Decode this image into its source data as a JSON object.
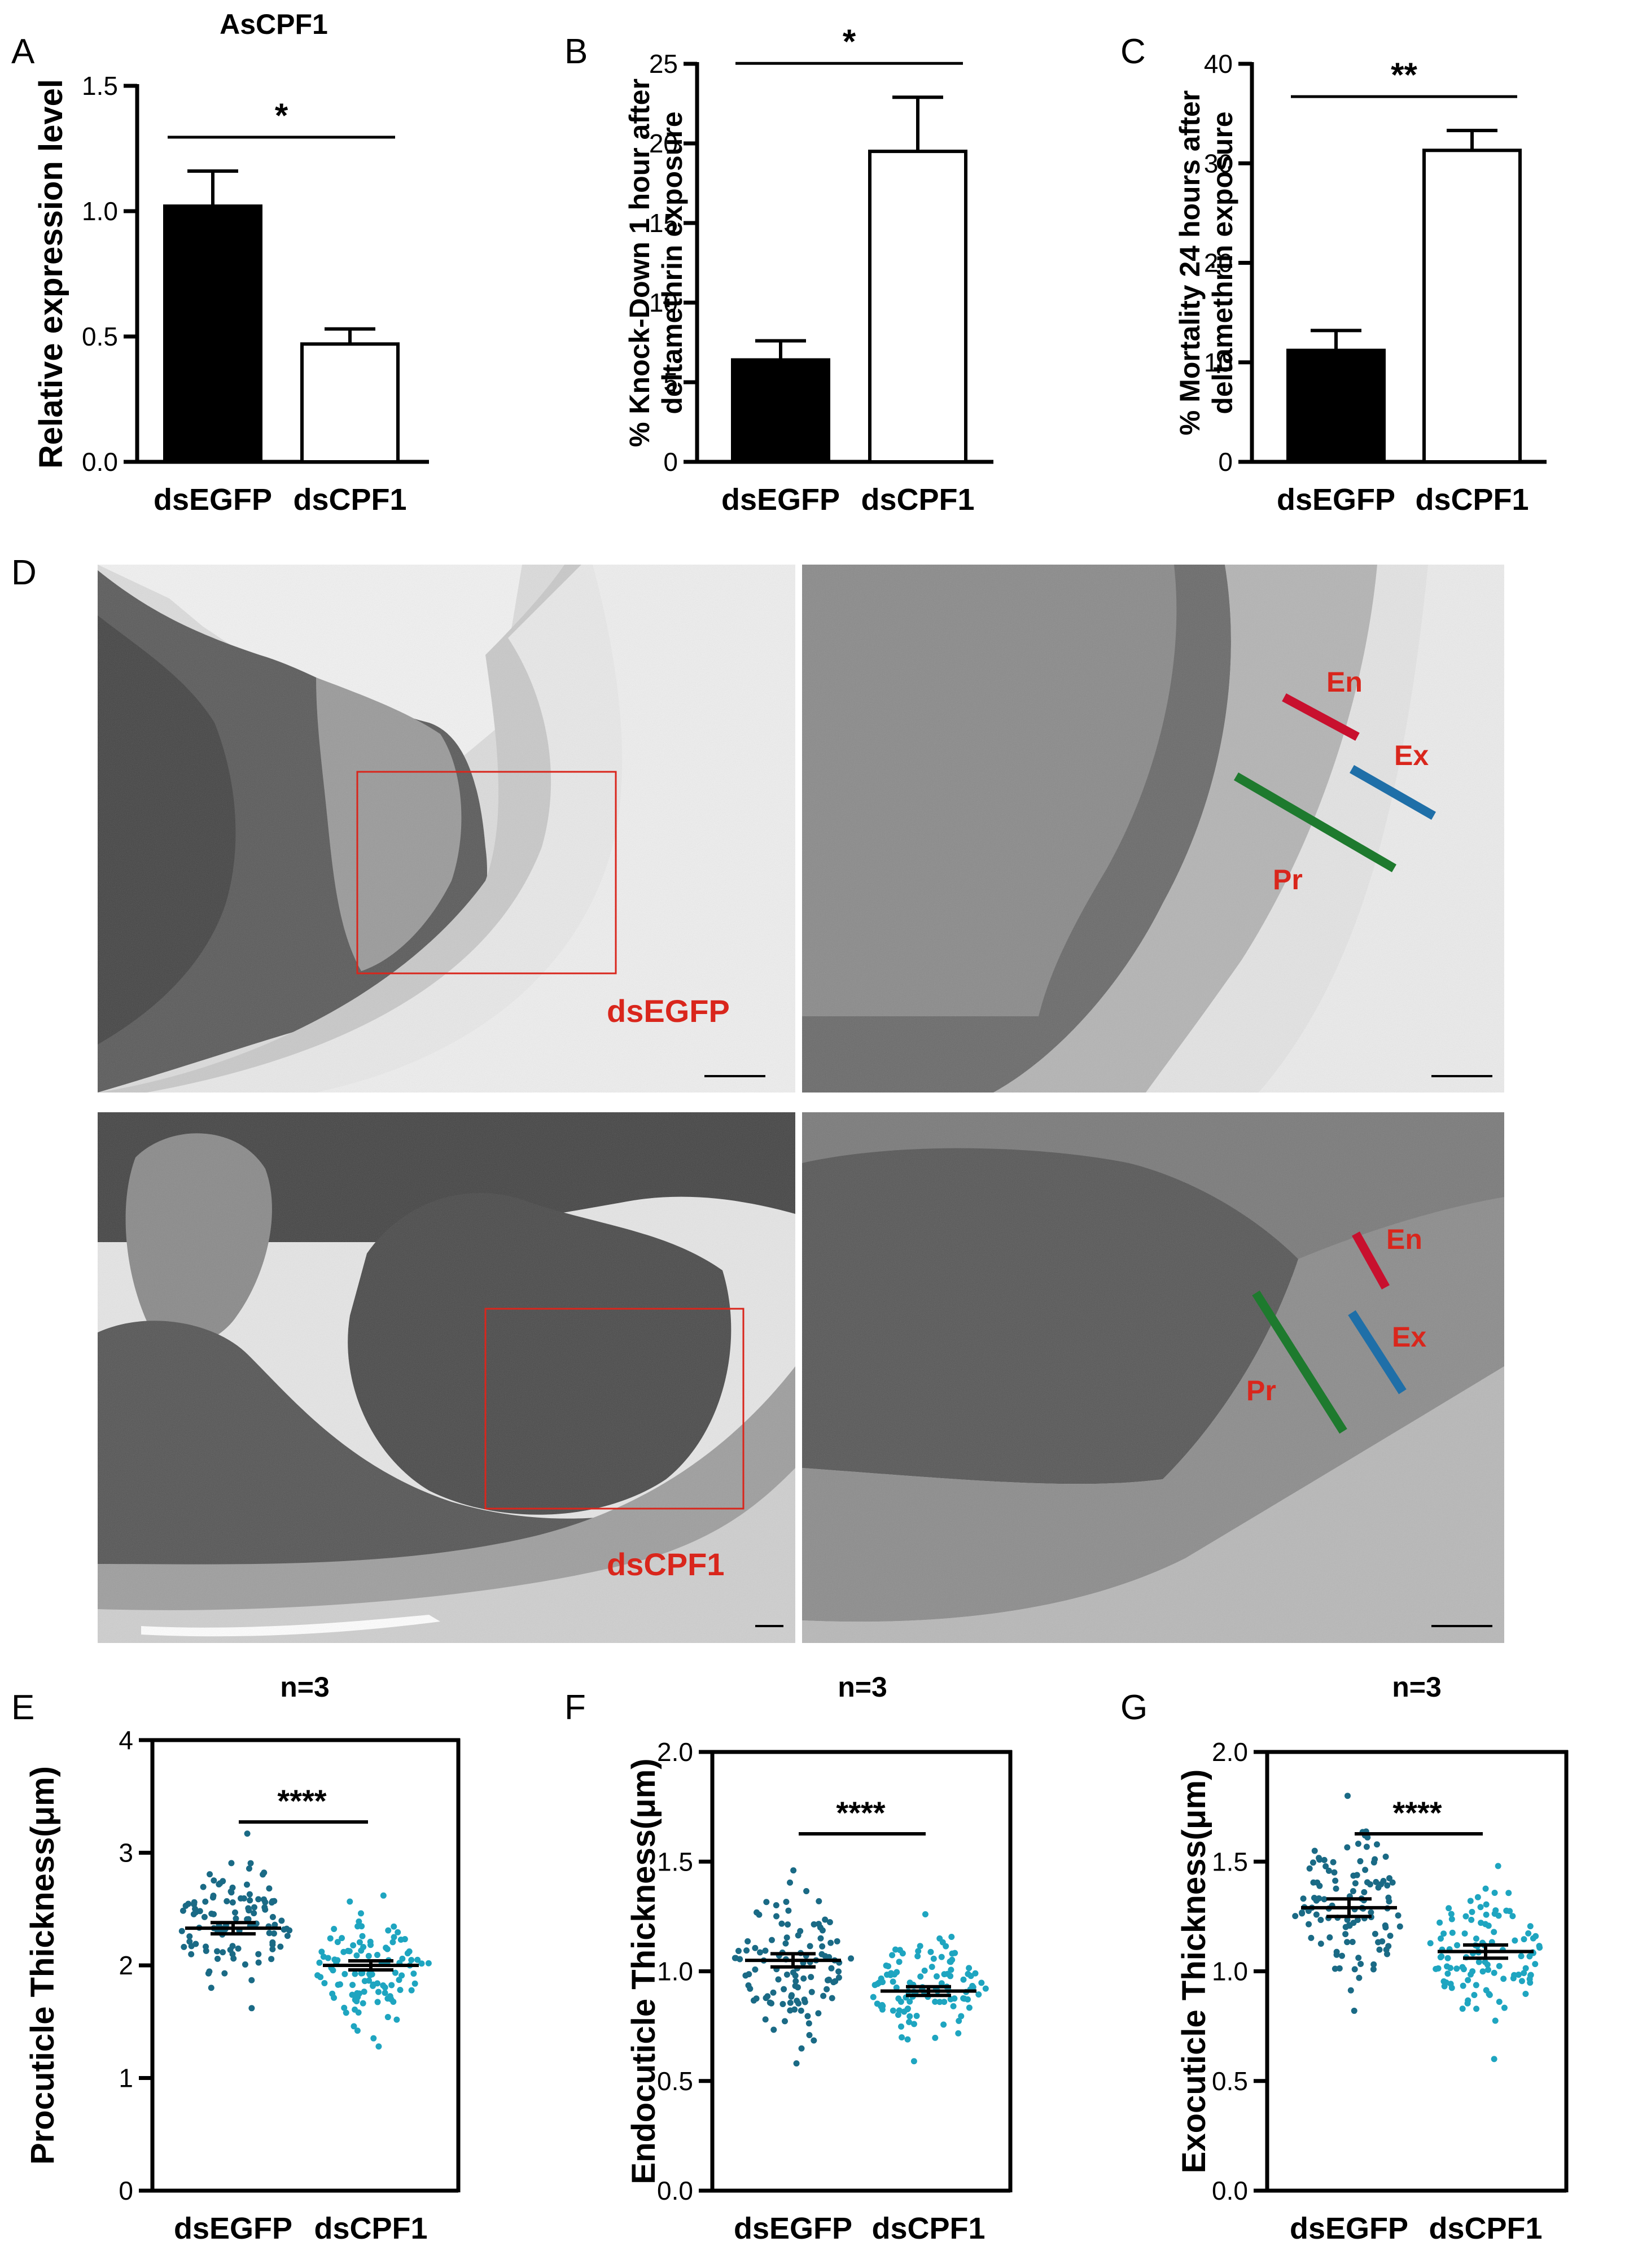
{
  "chart_data": [
    {
      "panel": "A",
      "type": "bar",
      "title": "AsCPF1",
      "ylabel": "Relative expression level",
      "categories": [
        "dsEGFP",
        "dsCPF1"
      ],
      "values": [
        1.02,
        0.47
      ],
      "errors": [
        0.14,
        0.06
      ],
      "ylim": [
        0,
        1.5
      ],
      "yticks": [
        "0.0",
        "0.5",
        "1.0",
        "1.5"
      ],
      "significance": "*",
      "bar_colors": [
        "#000000",
        "#ffffff"
      ]
    },
    {
      "panel": "B",
      "type": "bar",
      "title": "",
      "ylabel": "% Knock-Down 1 hour after deltamethrin exposure",
      "categories": [
        "dsEGFP",
        "dsCPF1"
      ],
      "values": [
        6.4,
        19.5
      ],
      "errors": [
        1.2,
        3.4
      ],
      "ylim": [
        0,
        25
      ],
      "yticks": [
        "0",
        "5",
        "10",
        "15",
        "20",
        "25"
      ],
      "significance": "*",
      "bar_colors": [
        "#000000",
        "#ffffff"
      ]
    },
    {
      "panel": "C",
      "type": "bar",
      "title": "",
      "ylabel": "% Mortality 24 hours after deltamethrin exposure",
      "categories": [
        "dsEGFP",
        "dsCPF1"
      ],
      "values": [
        11.2,
        31.3
      ],
      "errors": [
        2.0,
        2.0
      ],
      "ylim": [
        0,
        40
      ],
      "yticks": [
        "0",
        "10",
        "20",
        "30",
        "40"
      ],
      "significance": "**",
      "bar_colors": [
        "#000000",
        "#ffffff"
      ]
    },
    {
      "panel": "E",
      "type": "scatter",
      "title": "n=3",
      "ylabel": "Procuticle Thickness(μm)",
      "categories": [
        "dsEGFP",
        "dsCPF1"
      ],
      "means": [
        2.33,
        2.0
      ],
      "sem": [
        0.05,
        0.04
      ],
      "ranges": [
        [
          1.62,
          3.17
        ],
        [
          1.28,
          2.62
        ]
      ],
      "n_points": [
        110,
        110
      ],
      "ylim": [
        0,
        4
      ],
      "yticks": [
        "0",
        "1",
        "2",
        "3",
        "4"
      ],
      "significance": "****",
      "point_colors": [
        "#1a6a85",
        "#1ea5c0"
      ]
    },
    {
      "panel": "F",
      "type": "scatter",
      "title": "n=3",
      "ylabel": "Endocuticle Thickness(μm)",
      "categories": [
        "dsEGFP",
        "dsCPF1"
      ],
      "means": [
        1.05,
        0.91
      ],
      "sem": [
        0.03,
        0.02
      ],
      "ranges": [
        [
          0.58,
          1.46
        ],
        [
          0.59,
          1.26
        ]
      ],
      "n_points": [
        110,
        110
      ],
      "ylim": [
        0,
        2
      ],
      "yticks": [
        "0.0",
        "0.5",
        "1.0",
        "1.5",
        "2.0"
      ],
      "significance": "****",
      "point_colors": [
        "#1a6a85",
        "#1ea5c0"
      ]
    },
    {
      "panel": "G",
      "type": "scatter",
      "title": "n=3",
      "ylabel": "Exocuticle Thickness(μm)",
      "categories": [
        "dsEGFP",
        "dsCPF1"
      ],
      "means": [
        1.29,
        1.09
      ],
      "sem": [
        0.04,
        0.03
      ],
      "ranges": [
        [
          0.82,
          1.8
        ],
        [
          0.6,
          1.48
        ]
      ],
      "n_points": [
        110,
        110
      ],
      "ylim": [
        0,
        2
      ],
      "yticks": [
        "0.0",
        "0.5",
        "1.0",
        "1.5",
        "2.0"
      ],
      "significance": "****",
      "point_colors": [
        "#1a6a85",
        "#1ea5c0"
      ]
    }
  ],
  "panel_letters": [
    "A",
    "B",
    "C",
    "D",
    "E",
    "F",
    "G"
  ],
  "tem": {
    "group_labels": [
      "dsEGFP",
      "dsCPF1"
    ],
    "layer_labels": [
      "En",
      "Ex",
      "Pr"
    ],
    "layer_colors": {
      "En": "#c8102e",
      "Ex": "#1f6fa8",
      "Pr": "#1e7a2e"
    },
    "label_color": "#d9261c",
    "box_color": "#d9261c"
  }
}
